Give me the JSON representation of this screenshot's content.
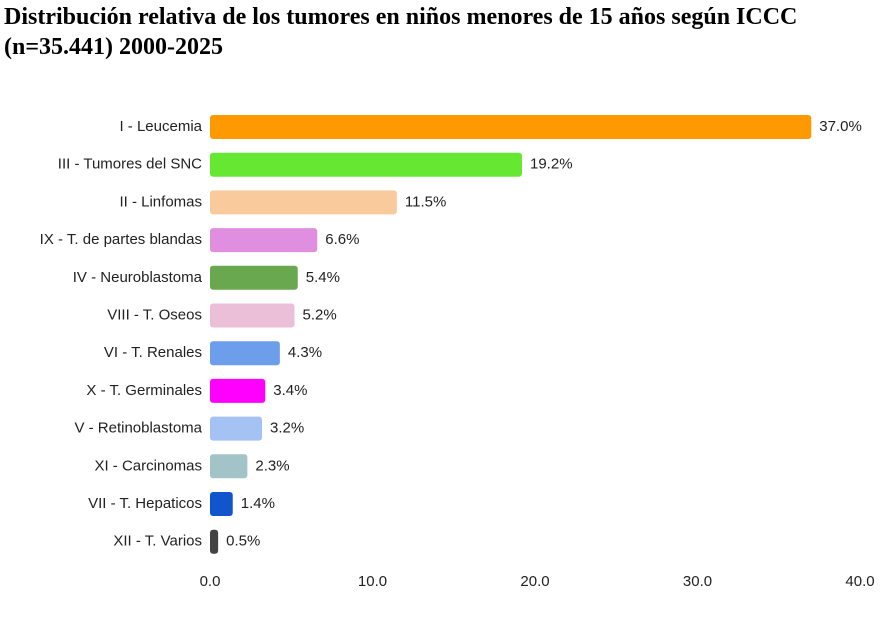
{
  "chart_data": {
    "type": "bar",
    "orientation": "horizontal",
    "title": "Distribución relativa de los tumores en niños menores de 15 años según ICCC (n=35.441) 2000-2025",
    "categories": [
      "I - Leucemia",
      "III - Tumores del SNC",
      "II - Linfomas",
      "IX - T. de partes blandas",
      "IV - Neuroblastoma",
      "VIII - T. Oseos",
      "VI - T. Renales",
      "X - T. Germinales",
      "V - Retinoblastoma",
      "XI - Carcinomas",
      "VII - T. Hepaticos",
      "XII - T. Varios"
    ],
    "values": [
      37.0,
      19.2,
      11.5,
      6.6,
      5.4,
      5.2,
      4.3,
      3.4,
      3.2,
      2.3,
      1.4,
      0.5
    ],
    "value_labels": [
      "37.0%",
      "19.2%",
      "11.5%",
      "6.6%",
      "5.4%",
      "5.2%",
      "4.3%",
      "3.4%",
      "3.2%",
      "2.3%",
      "1.4%",
      "0.5%"
    ],
    "colors": [
      "#ff9900",
      "#66e833",
      "#f9cb9c",
      "#e08ee0",
      "#6aa84f",
      "#ebbfd7",
      "#6d9eeb",
      "#ff00ff",
      "#a4c2f4",
      "#a2c4c9",
      "#1155cc",
      "#434343"
    ],
    "xlim": [
      0,
      40
    ],
    "xticks": [
      {
        "value": 0,
        "label": "0.0"
      },
      {
        "value": 10,
        "label": "10.0"
      },
      {
        "value": 20,
        "label": "20.0"
      },
      {
        "value": 30,
        "label": "30.0"
      },
      {
        "value": 40,
        "label": "40.0"
      }
    ]
  }
}
